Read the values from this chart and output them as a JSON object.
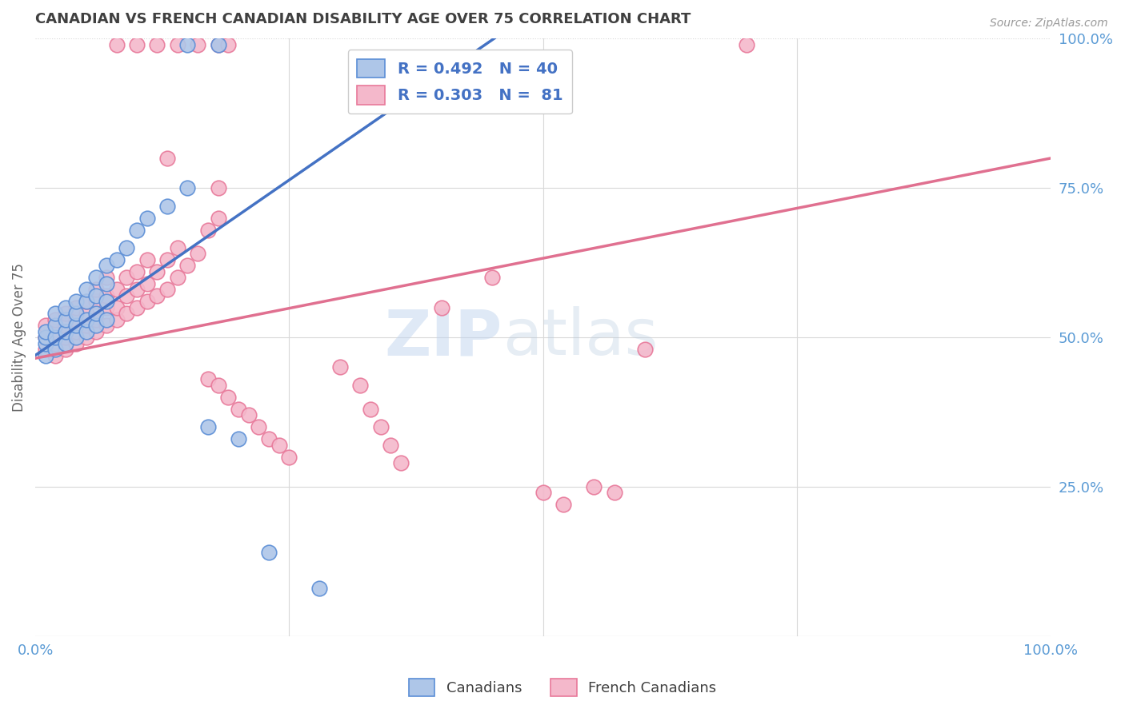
{
  "title": "CANADIAN VS FRENCH CANADIAN DISABILITY AGE OVER 75 CORRELATION CHART",
  "source": "Source: ZipAtlas.com",
  "ylabel": "Disability Age Over 75",
  "xlim": [
    0.0,
    1.0
  ],
  "ylim": [
    0.0,
    1.0
  ],
  "xtick_labels": [
    "0.0%",
    "100.0%"
  ],
  "ytick_labels_right": [
    "25.0%",
    "50.0%",
    "75.0%",
    "100.0%"
  ],
  "legend_blue_r": "R = 0.492",
  "legend_blue_n": "N = 40",
  "legend_pink_r": "R = 0.303",
  "legend_pink_n": "N =  81",
  "watermark_zip": "ZIP",
  "watermark_atlas": "atlas",
  "blue_color": "#aec6e8",
  "pink_color": "#f4b8cb",
  "blue_edge_color": "#5b8ed6",
  "pink_edge_color": "#e8799a",
  "blue_line_color": "#4472c4",
  "pink_line_color": "#e07090",
  "blue_trendline": [
    [
      0.0,
      0.47
    ],
    [
      0.46,
      1.01
    ]
  ],
  "pink_trendline": [
    [
      0.0,
      0.465
    ],
    [
      1.0,
      0.8
    ]
  ],
  "background_color": "#ffffff",
  "grid_color": "#d8d8d8",
  "title_color": "#404040",
  "right_label_color": "#5b9bd5",
  "bottom_label_color": "#5b9bd5",
  "scatter_blue": [
    [
      0.01,
      0.47
    ],
    [
      0.01,
      0.49
    ],
    [
      0.01,
      0.5
    ],
    [
      0.01,
      0.51
    ],
    [
      0.02,
      0.48
    ],
    [
      0.02,
      0.5
    ],
    [
      0.02,
      0.52
    ],
    [
      0.02,
      0.54
    ],
    [
      0.03,
      0.49
    ],
    [
      0.03,
      0.51
    ],
    [
      0.03,
      0.53
    ],
    [
      0.03,
      0.55
    ],
    [
      0.04,
      0.5
    ],
    [
      0.04,
      0.52
    ],
    [
      0.04,
      0.54
    ],
    [
      0.04,
      0.56
    ],
    [
      0.05,
      0.51
    ],
    [
      0.05,
      0.53
    ],
    [
      0.05,
      0.56
    ],
    [
      0.05,
      0.58
    ],
    [
      0.06,
      0.52
    ],
    [
      0.06,
      0.54
    ],
    [
      0.06,
      0.57
    ],
    [
      0.06,
      0.6
    ],
    [
      0.07,
      0.53
    ],
    [
      0.07,
      0.56
    ],
    [
      0.07,
      0.59
    ],
    [
      0.07,
      0.62
    ],
    [
      0.08,
      0.63
    ],
    [
      0.09,
      0.65
    ],
    [
      0.1,
      0.68
    ],
    [
      0.11,
      0.7
    ],
    [
      0.13,
      0.72
    ],
    [
      0.15,
      0.75
    ],
    [
      0.17,
      0.35
    ],
    [
      0.2,
      0.33
    ],
    [
      0.23,
      0.14
    ],
    [
      0.28,
      0.08
    ],
    [
      0.15,
      0.99
    ],
    [
      0.18,
      0.99
    ]
  ],
  "scatter_pink": [
    [
      0.01,
      0.48
    ],
    [
      0.01,
      0.5
    ],
    [
      0.01,
      0.52
    ],
    [
      0.02,
      0.47
    ],
    [
      0.02,
      0.49
    ],
    [
      0.02,
      0.51
    ],
    [
      0.02,
      0.53
    ],
    [
      0.03,
      0.48
    ],
    [
      0.03,
      0.5
    ],
    [
      0.03,
      0.52
    ],
    [
      0.03,
      0.54
    ],
    [
      0.04,
      0.49
    ],
    [
      0.04,
      0.51
    ],
    [
      0.04,
      0.53
    ],
    [
      0.04,
      0.55
    ],
    [
      0.05,
      0.5
    ],
    [
      0.05,
      0.52
    ],
    [
      0.05,
      0.54
    ],
    [
      0.05,
      0.56
    ],
    [
      0.06,
      0.51
    ],
    [
      0.06,
      0.53
    ],
    [
      0.06,
      0.56
    ],
    [
      0.06,
      0.58
    ],
    [
      0.07,
      0.52
    ],
    [
      0.07,
      0.55
    ],
    [
      0.07,
      0.57
    ],
    [
      0.07,
      0.6
    ],
    [
      0.08,
      0.53
    ],
    [
      0.08,
      0.55
    ],
    [
      0.08,
      0.58
    ],
    [
      0.09,
      0.54
    ],
    [
      0.09,
      0.57
    ],
    [
      0.09,
      0.6
    ],
    [
      0.1,
      0.55
    ],
    [
      0.1,
      0.58
    ],
    [
      0.1,
      0.61
    ],
    [
      0.11,
      0.56
    ],
    [
      0.11,
      0.59
    ],
    [
      0.11,
      0.63
    ],
    [
      0.12,
      0.57
    ],
    [
      0.12,
      0.61
    ],
    [
      0.13,
      0.58
    ],
    [
      0.13,
      0.63
    ],
    [
      0.14,
      0.6
    ],
    [
      0.14,
      0.65
    ],
    [
      0.15,
      0.62
    ],
    [
      0.16,
      0.64
    ],
    [
      0.17,
      0.43
    ],
    [
      0.18,
      0.42
    ],
    [
      0.19,
      0.4
    ],
    [
      0.2,
      0.38
    ],
    [
      0.21,
      0.37
    ],
    [
      0.22,
      0.35
    ],
    [
      0.23,
      0.33
    ],
    [
      0.24,
      0.32
    ],
    [
      0.25,
      0.3
    ],
    [
      0.17,
      0.68
    ],
    [
      0.18,
      0.7
    ],
    [
      0.08,
      0.99
    ],
    [
      0.1,
      0.99
    ],
    [
      0.12,
      0.99
    ],
    [
      0.14,
      0.99
    ],
    [
      0.16,
      0.99
    ],
    [
      0.18,
      0.99
    ],
    [
      0.19,
      0.99
    ],
    [
      0.13,
      0.8
    ],
    [
      0.18,
      0.75
    ],
    [
      0.3,
      0.45
    ],
    [
      0.32,
      0.42
    ],
    [
      0.33,
      0.38
    ],
    [
      0.34,
      0.35
    ],
    [
      0.35,
      0.32
    ],
    [
      0.36,
      0.29
    ],
    [
      0.4,
      0.55
    ],
    [
      0.45,
      0.6
    ],
    [
      0.5,
      0.24
    ],
    [
      0.52,
      0.22
    ],
    [
      0.55,
      0.25
    ],
    [
      0.57,
      0.24
    ],
    [
      0.6,
      0.48
    ],
    [
      0.7,
      0.99
    ]
  ]
}
